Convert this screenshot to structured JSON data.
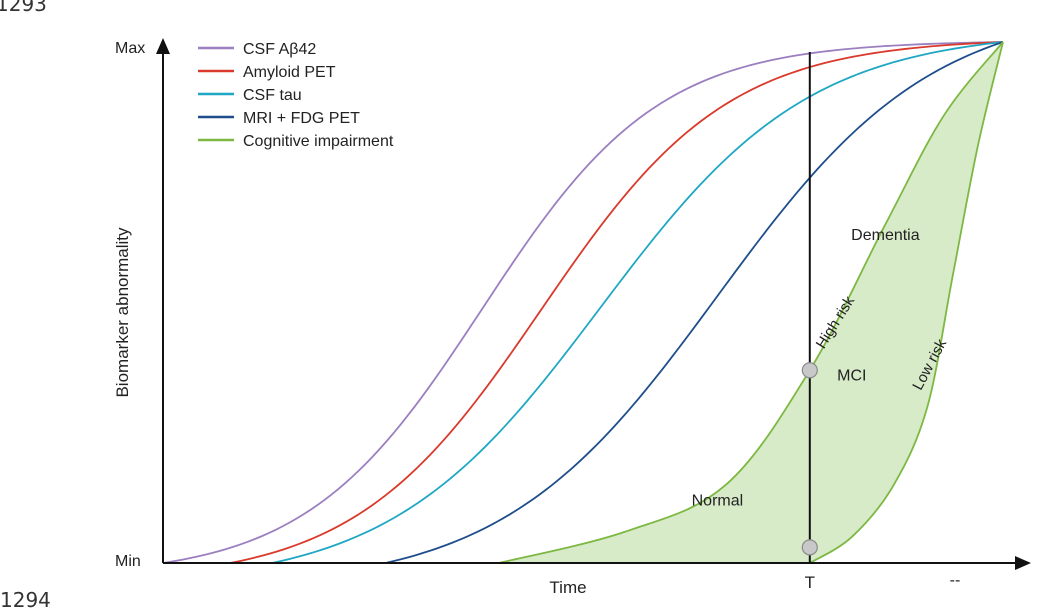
{
  "page": {
    "line_number_top": "1293",
    "line_number_bottom": "1294"
  },
  "chart_data": {
    "type": "line",
    "title": "",
    "xlabel": "Time",
    "ylabel": "Biomarker abnormality",
    "y_ticks": [
      "Min",
      "Max"
    ],
    "x_marker": {
      "label": "T",
      "x": 0.77
    },
    "x_end_label": "--",
    "xlim": [
      0,
      1
    ],
    "ylim": [
      0,
      1
    ],
    "legend_position": "top-left",
    "series": [
      {
        "name": "CSF Aβ42",
        "color": "#9b7fc0",
        "curve": "sigmoid",
        "x_start": 0.0,
        "x_end": 1.0,
        "midpoint": 0.38,
        "steepness": 9.5
      },
      {
        "name": "Amyloid PET",
        "color": "#d93a2b",
        "curve": "sigmoid",
        "x_start": 0.08,
        "x_end": 1.0,
        "midpoint": 0.45,
        "steepness": 9.0
      },
      {
        "name": "CSF tau",
        "color": "#1fa7c4",
        "curve": "sigmoid",
        "x_start": 0.13,
        "x_end": 1.0,
        "midpoint": 0.52,
        "steepness": 8.0
      },
      {
        "name": "MRI + FDG PET",
        "color": "#1f4e8c",
        "curve": "sigmoid",
        "x_start": 0.265,
        "x_end": 1.0,
        "midpoint": 0.66,
        "steepness": 7.8
      },
      {
        "name": "Cognitive impairment",
        "color": "#7db843",
        "curve": "band",
        "x_start": 0.4,
        "x_end": 1.0
      }
    ],
    "band": {
      "upper_label": "High risk",
      "lower_label": "Low risk",
      "fill": "#d8ebc9",
      "upper_points": [
        [
          0.4,
          0.0
        ],
        [
          0.55,
          0.06
        ],
        [
          0.67,
          0.15
        ],
        [
          0.77,
          0.37
        ],
        [
          0.86,
          0.65
        ],
        [
          0.93,
          0.86
        ],
        [
          1.0,
          1.0
        ]
      ],
      "lower_points": [
        [
          0.77,
          0.0
        ],
        [
          0.82,
          0.05
        ],
        [
          0.87,
          0.15
        ],
        [
          0.91,
          0.3
        ],
        [
          0.94,
          0.55
        ],
        [
          0.97,
          0.8
        ],
        [
          1.0,
          1.0
        ]
      ],
      "markers": [
        [
          0.77,
          0.37
        ],
        [
          0.77,
          0.03
        ]
      ]
    },
    "annotations": [
      {
        "text": "Dementia",
        "x": 0.86,
        "y": 0.62
      },
      {
        "text": "MCI",
        "x": 0.82,
        "y": 0.35
      },
      {
        "text": "Normal",
        "x": 0.66,
        "y": 0.11
      }
    ]
  }
}
